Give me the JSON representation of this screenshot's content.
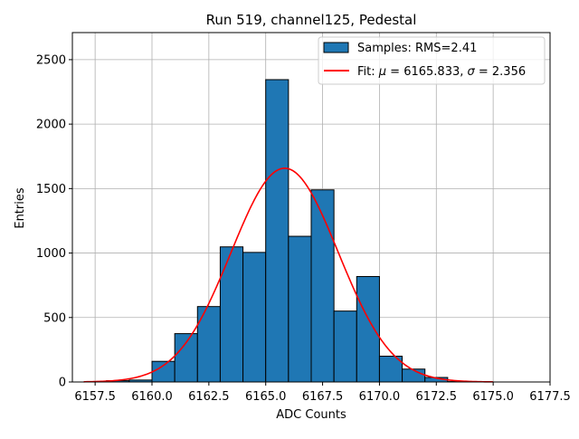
{
  "chart_data": {
    "type": "bar",
    "title": "Run 519, channel125, Pedestal",
    "xlabel": "ADC Counts",
    "ylabel": "Entries",
    "xlim": [
      6156.5,
      6177.5
    ],
    "ylim": [
      0,
      2710
    ],
    "xticks": [
      6157.5,
      6160.0,
      6162.5,
      6165.0,
      6167.5,
      6170.0,
      6172.5,
      6175.0,
      6177.5
    ],
    "xtick_labels": [
      "6157.5",
      "6160.0",
      "6162.5",
      "6165.0",
      "6167.5",
      "6170.0",
      "6172.5",
      "6175.0",
      "6177.5"
    ],
    "yticks": [
      0,
      500,
      1000,
      1500,
      2000,
      2500
    ],
    "ytick_labels": [
      "0",
      "500",
      "1000",
      "1500",
      "2000",
      "2500"
    ],
    "grid": true,
    "legend_position": "top-right",
    "bar_color": "#1f77b4",
    "fit_color": "#ff0000",
    "bins": [
      {
        "left": 6158,
        "right": 6159,
        "value": 10
      },
      {
        "left": 6159,
        "right": 6160,
        "value": 15
      },
      {
        "left": 6160,
        "right": 6161,
        "value": 160
      },
      {
        "left": 6161,
        "right": 6162,
        "value": 375
      },
      {
        "left": 6162,
        "right": 6163,
        "value": 585
      },
      {
        "left": 6163,
        "right": 6164,
        "value": 1048
      },
      {
        "left": 6164,
        "right": 6165,
        "value": 1005
      },
      {
        "left": 6165,
        "right": 6166,
        "value": 2345
      },
      {
        "left": 6166,
        "right": 6167,
        "value": 1130
      },
      {
        "left": 6167,
        "right": 6168,
        "value": 1490
      },
      {
        "left": 6168,
        "right": 6169,
        "value": 550
      },
      {
        "left": 6169,
        "right": 6170,
        "value": 818
      },
      {
        "left": 6170,
        "right": 6171,
        "value": 200
      },
      {
        "left": 6171,
        "right": 6172,
        "value": 100
      },
      {
        "left": 6172,
        "right": 6173,
        "value": 35
      },
      {
        "left": 6173,
        "right": 6174,
        "value": 3
      }
    ],
    "fit": {
      "mu": 6165.833,
      "sigma": 2.356,
      "amplitude": 1658,
      "x_range": [
        6157.0,
        6175.0
      ]
    },
    "legend": {
      "samples_label": "Samples: RMS=2.41",
      "fit_prefix": "Fit: ",
      "mu_symbol": "μ",
      "fit_middle": " = 6165.833, ",
      "sigma_symbol": "σ",
      "fit_suffix": " = 2.356"
    }
  }
}
